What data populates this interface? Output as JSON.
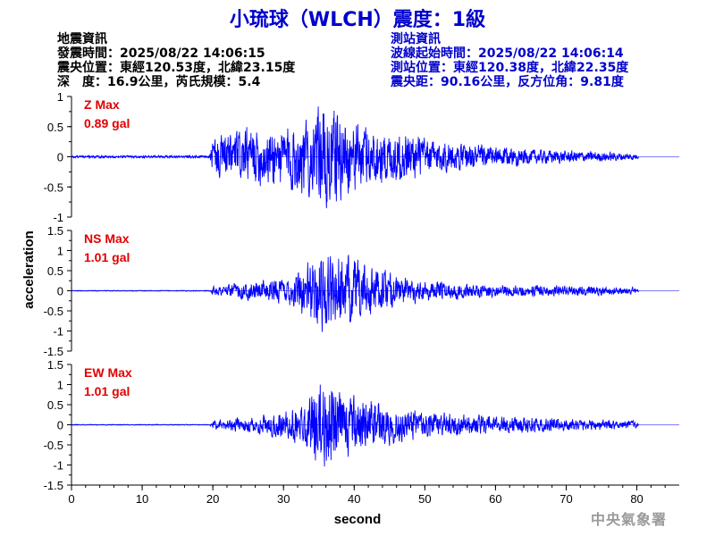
{
  "title": "小琉球（WLCH）震度：1級",
  "event_info": {
    "heading": "地震資訊",
    "origin_time": "發震時間：2025/08/22 14:06:15",
    "epicenter": "震央位置：東經120.53度，北緯23.15度",
    "depth_magnitude": "深　度：16.9公里，芮氏規模：5.4"
  },
  "station_info": {
    "heading": "測站資訊",
    "wave_start": "波線起始時間：2025/08/22 14:06:14",
    "station_location": "測站位置：東經120.38度，北緯22.35度",
    "distance_azimuth": "震央距：90.16公里，反方位角：9.81度"
  },
  "watermark": "中央氣象署",
  "colors": {
    "title": "#0000cc",
    "trace": "#0000ff",
    "peak_label": "#e00000",
    "axis": "#000000"
  },
  "chart_data": {
    "type": "line",
    "xlabel": "second",
    "ylabel": "acceleration",
    "xlim": [
      0,
      86
    ],
    "x_ticks": [
      0,
      10,
      20,
      30,
      40,
      50,
      60,
      70,
      80
    ],
    "duration": 80.3,
    "panels": [
      {
        "name": "Z Max",
        "peak": "0.89 gal",
        "ylim": [
          -1,
          1
        ],
        "y_ticks": [
          "1",
          "0.5",
          "0",
          "-0.5",
          "-1"
        ],
        "y_tick_values": [
          1,
          0.5,
          0,
          -0.5,
          -1
        ],
        "envelope": [
          [
            0,
            0.02
          ],
          [
            19.5,
            0.02
          ],
          [
            20,
            0.3
          ],
          [
            21,
            0.35
          ],
          [
            23,
            0.4
          ],
          [
            26,
            0.45
          ],
          [
            28,
            0.45
          ],
          [
            30,
            0.5
          ],
          [
            32,
            0.6
          ],
          [
            34,
            0.6
          ],
          [
            35.5,
            0.8
          ],
          [
            36.2,
            0.89
          ],
          [
            38,
            0.7
          ],
          [
            40,
            0.55
          ],
          [
            42,
            0.5
          ],
          [
            44,
            0.45
          ],
          [
            46,
            0.4
          ],
          [
            48,
            0.4
          ],
          [
            50,
            0.3
          ],
          [
            55,
            0.22
          ],
          [
            60,
            0.17
          ],
          [
            65,
            0.12
          ],
          [
            70,
            0.1
          ],
          [
            75,
            0.08
          ],
          [
            80,
            0.05
          ],
          [
            80.3,
            0.0
          ]
        ],
        "seed": 3
      },
      {
        "name": "NS Max",
        "peak": "1.01 gal",
        "ylim": [
          -1.5,
          1.5
        ],
        "y_ticks": [
          "1.5",
          "1",
          "0.5",
          "0",
          "-0.5",
          "-1",
          "-1.5"
        ],
        "y_tick_values": [
          1.5,
          1,
          0.5,
          0,
          -0.5,
          -1,
          -1.5
        ],
        "envelope": [
          [
            0,
            0.01
          ],
          [
            19.5,
            0.01
          ],
          [
            20,
            0.1
          ],
          [
            22,
            0.15
          ],
          [
            25,
            0.2
          ],
          [
            28,
            0.25
          ],
          [
            30,
            0.3
          ],
          [
            33,
            0.6
          ],
          [
            35.5,
            0.95
          ],
          [
            36.5,
            1.01
          ],
          [
            38,
            0.85
          ],
          [
            40,
            0.7
          ],
          [
            42,
            0.6
          ],
          [
            44,
            0.5
          ],
          [
            46,
            0.35
          ],
          [
            50,
            0.25
          ],
          [
            55,
            0.18
          ],
          [
            60,
            0.15
          ],
          [
            65,
            0.13
          ],
          [
            70,
            0.12
          ],
          [
            75,
            0.1
          ],
          [
            80,
            0.08
          ],
          [
            80.3,
            0.0
          ]
        ],
        "seed": 7
      },
      {
        "name": "EW Max",
        "peak": "1.01 gal",
        "ylim": [
          -1.5,
          1.5
        ],
        "y_ticks": [
          "1.5",
          "1",
          "0.5",
          "0",
          "-0.5",
          "-1",
          "-1.5"
        ],
        "y_tick_values": [
          1.5,
          1,
          0.5,
          0,
          -0.5,
          -1,
          -1.5
        ],
        "envelope": [
          [
            0,
            0.01
          ],
          [
            19.5,
            0.01
          ],
          [
            20,
            0.1
          ],
          [
            22,
            0.15
          ],
          [
            25,
            0.18
          ],
          [
            28,
            0.25
          ],
          [
            31,
            0.35
          ],
          [
            33,
            0.5
          ],
          [
            34.5,
            0.9
          ],
          [
            36,
            1.01
          ],
          [
            38,
            0.8
          ],
          [
            40,
            0.65
          ],
          [
            42,
            0.6
          ],
          [
            44,
            0.5
          ],
          [
            46,
            0.4
          ],
          [
            50,
            0.3
          ],
          [
            55,
            0.25
          ],
          [
            60,
            0.2
          ],
          [
            65,
            0.18
          ],
          [
            70,
            0.15
          ],
          [
            75,
            0.12
          ],
          [
            80,
            0.08
          ],
          [
            80.3,
            0.0
          ]
        ],
        "seed": 11
      }
    ]
  }
}
